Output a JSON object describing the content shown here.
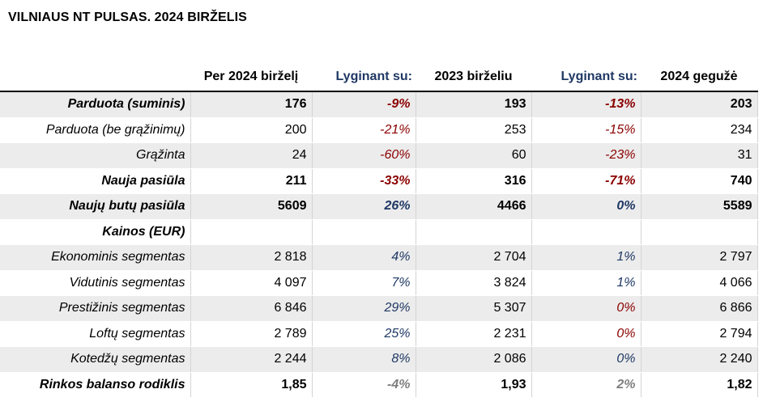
{
  "title": "VILNIAUS NT PULSAS. 2024 BIRŽELIS",
  "headers": {
    "label": "",
    "current": "Per 2024 birželį",
    "compare1": "Lyginant su:",
    "period1": "2023 birželiu",
    "compare2": "Lyginant su:",
    "period2": "2024 gegužė"
  },
  "colors": {
    "negative": "#8b0000",
    "positive": "#1f3864",
    "neutral": "#7f7f7f",
    "shade": "#ececec"
  },
  "rows": [
    {
      "label": "Parduota (suminis)",
      "current": "176",
      "change1": "-9%",
      "change1_tone": "neg",
      "prev1": "193",
      "change2": "-13%",
      "change2_tone": "neg",
      "prev2": "203",
      "bold": true,
      "shade": true
    },
    {
      "label": "Parduota (be grąžinimų)",
      "current": "200",
      "change1": "-21%",
      "change1_tone": "neg",
      "prev1": "253",
      "change2": "-15%",
      "change2_tone": "neg",
      "prev2": "234",
      "bold": false,
      "shade": false
    },
    {
      "label": "Grąžinta",
      "current": "24",
      "change1": "-60%",
      "change1_tone": "neg",
      "prev1": "60",
      "change2": "-23%",
      "change2_tone": "neg",
      "prev2": "31",
      "bold": false,
      "shade": true
    },
    {
      "label": "Nauja pasiūla",
      "current": "211",
      "change1": "-33%",
      "change1_tone": "neg",
      "prev1": "316",
      "change2": "-71%",
      "change2_tone": "neg",
      "prev2": "740",
      "bold": true,
      "shade": false
    },
    {
      "label": "Naujų butų pasiūla",
      "current": "5609",
      "change1": "26%",
      "change1_tone": "pos",
      "prev1": "4466",
      "change2": "0%",
      "change2_tone": "pos",
      "prev2": "5589",
      "bold": true,
      "shade": true
    },
    {
      "label": "Kainos (EUR)",
      "current": "",
      "change1": "",
      "change1_tone": "pos",
      "prev1": "",
      "change2": "",
      "change2_tone": "pos",
      "prev2": "",
      "bold": true,
      "shade": false
    },
    {
      "label": "Ekonominis segmentas",
      "current": "2 818",
      "change1": "4%",
      "change1_tone": "pos",
      "prev1": "2 704",
      "change2": "1%",
      "change2_tone": "pos",
      "prev2": "2 797",
      "bold": false,
      "shade": true
    },
    {
      "label": "Vidutinis segmentas",
      "current": "4 097",
      "change1": "7%",
      "change1_tone": "pos",
      "prev1": "3 824",
      "change2": "1%",
      "change2_tone": "pos",
      "prev2": "4 066",
      "bold": false,
      "shade": false
    },
    {
      "label": "Prestižinis segmentas",
      "current": "6 846",
      "change1": "29%",
      "change1_tone": "pos",
      "prev1": "5 307",
      "change2": "0%",
      "change2_tone": "neg",
      "prev2": "6 866",
      "bold": false,
      "shade": true
    },
    {
      "label": "Loftų segmentas",
      "current": "2 789",
      "change1": "25%",
      "change1_tone": "pos",
      "prev1": "2 231",
      "change2": "0%",
      "change2_tone": "neg",
      "prev2": "2 794",
      "bold": false,
      "shade": false
    },
    {
      "label": "Kotedžų segmentas",
      "current": "2 244",
      "change1": "8%",
      "change1_tone": "pos",
      "prev1": "2 086",
      "change2": "0%",
      "change2_tone": "pos",
      "prev2": "2 240",
      "bold": false,
      "shade": true
    },
    {
      "label": "Rinkos balanso rodiklis",
      "current": "1,85",
      "change1": "-4%",
      "change1_tone": "neu",
      "prev1": "1,93",
      "change2": "2%",
      "change2_tone": "neu",
      "prev2": "1,82",
      "bold": true,
      "shade": false
    }
  ]
}
